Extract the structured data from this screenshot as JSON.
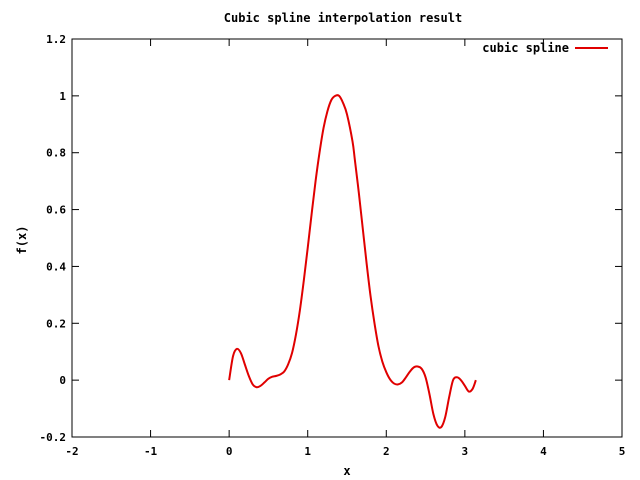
{
  "chart_data": {
    "type": "line",
    "title": "Cubic spline interpolation result",
    "xlabel": "x",
    "ylabel": "f(x)",
    "xlim": [
      -2,
      5
    ],
    "ylim": [
      -0.2,
      1.2
    ],
    "x_ticks": [
      -2,
      -1,
      0,
      1,
      2,
      3,
      4,
      5
    ],
    "x_tick_labels": [
      "-2",
      "-1",
      "0",
      "1",
      "2",
      "3",
      "4",
      "5"
    ],
    "y_ticks": [
      -0.2,
      0,
      0.2,
      0.4,
      0.6,
      0.8,
      1,
      1.2
    ],
    "y_tick_labels": [
      "-0.2",
      "0",
      "0.2",
      "0.4",
      "0.6",
      "0.8",
      "1",
      "1.2"
    ],
    "grid": false,
    "legend_position": "top-right",
    "series": [
      {
        "name": "cubic spline",
        "color": "#e00000",
        "x": [
          0.0,
          0.05,
          0.1,
          0.15,
          0.2,
          0.25,
          0.3,
          0.35,
          0.4,
          0.45,
          0.5,
          0.55,
          0.6,
          0.65,
          0.7,
          0.75,
          0.8,
          0.85,
          0.9,
          0.95,
          1.0,
          1.05,
          1.1,
          1.15,
          1.2,
          1.25,
          1.3,
          1.35,
          1.4,
          1.45,
          1.5,
          1.57,
          1.6,
          1.65,
          1.7,
          1.75,
          1.8,
          1.85,
          1.9,
          1.95,
          2.0,
          2.05,
          2.1,
          2.15,
          2.2,
          2.25,
          2.3,
          2.35,
          2.4,
          2.45,
          2.5,
          2.55,
          2.6,
          2.65,
          2.7,
          2.75,
          2.8,
          2.85,
          2.9,
          2.95,
          3.0,
          3.05,
          3.1,
          3.14
        ],
        "y": [
          0.0,
          0.085,
          0.11,
          0.095,
          0.055,
          0.015,
          -0.015,
          -0.025,
          -0.02,
          -0.008,
          0.005,
          0.012,
          0.015,
          0.02,
          0.03,
          0.055,
          0.095,
          0.16,
          0.245,
          0.35,
          0.465,
          0.585,
          0.7,
          0.8,
          0.885,
          0.945,
          0.985,
          1.0,
          1.0,
          0.975,
          0.935,
          0.84,
          0.775,
          0.66,
          0.535,
          0.41,
          0.295,
          0.2,
          0.12,
          0.065,
          0.028,
          0.002,
          -0.012,
          -0.015,
          -0.008,
          0.01,
          0.03,
          0.045,
          0.048,
          0.04,
          0.01,
          -0.05,
          -0.12,
          -0.16,
          -0.165,
          -0.13,
          -0.06,
          0.0,
          0.01,
          0.0,
          -0.02,
          -0.04,
          -0.03,
          0.0
        ]
      }
    ]
  }
}
